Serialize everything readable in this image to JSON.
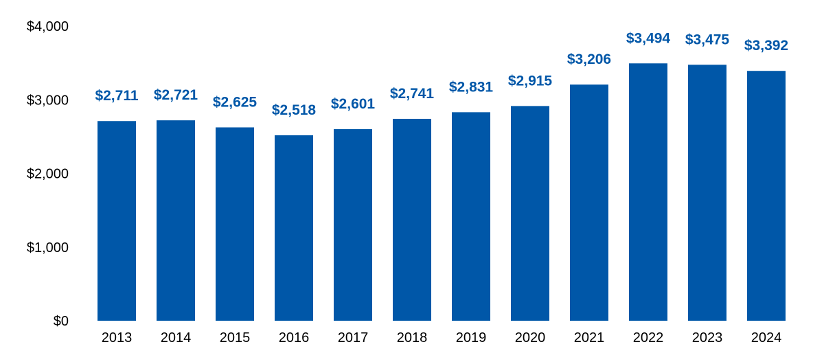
{
  "chart_data": {
    "type": "bar",
    "title": "",
    "xlabel": "",
    "ylabel": "",
    "categories": [
      "2013",
      "2014",
      "2015",
      "2016",
      "2017",
      "2018",
      "2019",
      "2020",
      "2021",
      "2022",
      "2023",
      "2024"
    ],
    "values": [
      2711,
      2721,
      2625,
      2518,
      2601,
      2741,
      2831,
      2915,
      3206,
      3494,
      3475,
      3392
    ],
    "data_labels": [
      "$2,711",
      "$2,721",
      "$2,625",
      "$2,518",
      "$2,601",
      "$2,741",
      "$2,831",
      "$2,915",
      "$3,206",
      "$3,494",
      "$3,475",
      "$3,392"
    ],
    "ylim": [
      0,
      4000
    ],
    "y_ticks": [
      0,
      1000,
      2000,
      3000,
      4000
    ],
    "y_tick_labels": [
      "$0",
      "$1,000",
      "$2,000",
      "$3,000",
      "$4,000"
    ],
    "grid": false,
    "legend": "none",
    "colors": {
      "bar": "#0057A8",
      "data_label": "#0057A8",
      "tick_text": "#000000"
    }
  }
}
